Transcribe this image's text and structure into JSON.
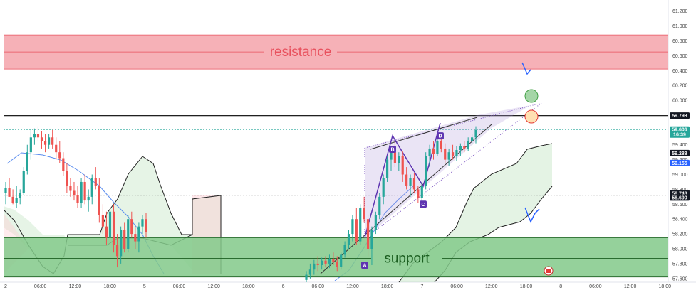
{
  "chart_data": {
    "type": "candlestick",
    "price_axis": {
      "range": [
        57.55,
        61.35
      ],
      "ticks": [
        "61.200",
        "61.000",
        "60.800",
        "60.600",
        "60.400",
        "60.200",
        "60.000",
        "59.800",
        "59.600",
        "59.400",
        "59.200",
        "59.000",
        "58.800",
        "58.600",
        "58.400",
        "58.200",
        "58.000",
        "57.800",
        "57.600"
      ]
    },
    "time_axis": {
      "ticks": [
        "2",
        "06:00",
        "12:00",
        "18:00",
        "5",
        "06:00",
        "12:00",
        "18:00",
        "6",
        "06:00",
        "12:00",
        "18:00",
        "7",
        "06:00",
        "12:00",
        "18:00",
        "8",
        "06:00",
        "12:00",
        "18:00"
      ]
    },
    "zones": [
      {
        "name": "resistance",
        "low": 60.42,
        "high": 60.88,
        "mid": 60.65,
        "color": "#f5a3aa",
        "text_color": "#e8515e"
      },
      {
        "name": "support",
        "low": 57.62,
        "high": 58.15,
        "mid": 57.87,
        "color": "#82c98a",
        "text_color": "#1b5e20"
      }
    ],
    "price_labels": [
      {
        "value": "59.793",
        "bg": "#131722"
      },
      {
        "value": "59.606",
        "sub": "16:39",
        "bg": "#26a69a"
      },
      {
        "value": "59.288",
        "bg": "#131722"
      },
      {
        "value": "59.155",
        "bg": "#2962ff"
      },
      {
        "value": "58.748",
        "bg": "#131722"
      },
      {
        "value": "58.690",
        "bg": "#131722"
      }
    ],
    "horizontal_lines": [
      {
        "price": 59.793,
        "style": "solid",
        "color": "#000000"
      },
      {
        "price": 59.606,
        "style": "dotted",
        "color": "#26a69a"
      },
      {
        "price": 58.72,
        "style": "dotted",
        "color": "#555555"
      }
    ],
    "pattern_points": [
      {
        "label": "A",
        "price": 57.78
      },
      {
        "label": "B",
        "price": 59.34
      },
      {
        "label": "C",
        "price": 58.6
      },
      {
        "label": "D",
        "price": 59.52
      }
    ],
    "candles": [
      {
        "o": 58.75,
        "h": 58.9,
        "l": 58.6,
        "c": 58.82
      },
      {
        "o": 58.82,
        "h": 58.95,
        "l": 58.7,
        "c": 58.7
      },
      {
        "o": 58.7,
        "h": 58.8,
        "l": 58.6,
        "c": 58.62
      },
      {
        "o": 58.62,
        "h": 58.85,
        "l": 58.55,
        "c": 58.68
      },
      {
        "o": 58.68,
        "h": 58.8,
        "l": 58.6,
        "c": 58.75
      },
      {
        "o": 58.75,
        "h": 59.1,
        "l": 58.72,
        "c": 59.05
      },
      {
        "o": 59.05,
        "h": 59.4,
        "l": 59.0,
        "c": 59.3
      },
      {
        "o": 59.3,
        "h": 59.6,
        "l": 59.2,
        "c": 59.5
      },
      {
        "o": 59.5,
        "h": 59.62,
        "l": 59.4,
        "c": 59.55
      },
      {
        "o": 59.55,
        "h": 59.65,
        "l": 59.45,
        "c": 59.5
      },
      {
        "o": 59.5,
        "h": 59.58,
        "l": 59.35,
        "c": 59.45
      },
      {
        "o": 59.45,
        "h": 59.55,
        "l": 59.3,
        "c": 59.4
      },
      {
        "o": 59.4,
        "h": 59.55,
        "l": 59.35,
        "c": 59.5
      },
      {
        "o": 59.5,
        "h": 59.6,
        "l": 59.35,
        "c": 59.4
      },
      {
        "o": 59.4,
        "h": 59.5,
        "l": 59.2,
        "c": 59.3
      },
      {
        "o": 59.3,
        "h": 59.45,
        "l": 59.15,
        "c": 59.22
      },
      {
        "o": 59.22,
        "h": 59.3,
        "l": 58.98,
        "c": 59.05
      },
      {
        "o": 59.05,
        "h": 59.15,
        "l": 58.75,
        "c": 58.85
      },
      {
        "o": 58.85,
        "h": 58.95,
        "l": 58.7,
        "c": 58.78
      },
      {
        "o": 58.78,
        "h": 58.9,
        "l": 58.65,
        "c": 58.72
      },
      {
        "o": 58.72,
        "h": 58.85,
        "l": 58.55,
        "c": 58.62
      },
      {
        "o": 58.62,
        "h": 58.95,
        "l": 58.55,
        "c": 58.9
      },
      {
        "o": 58.9,
        "h": 59.0,
        "l": 58.6,
        "c": 58.65
      },
      {
        "o": 58.65,
        "h": 58.8,
        "l": 58.5,
        "c": 58.7
      },
      {
        "o": 58.7,
        "h": 59.0,
        "l": 58.6,
        "c": 58.95
      },
      {
        "o": 58.95,
        "h": 59.1,
        "l": 58.8,
        "c": 58.85
      },
      {
        "o": 58.85,
        "h": 58.95,
        "l": 58.35,
        "c": 58.45
      },
      {
        "o": 58.45,
        "h": 58.6,
        "l": 58.2,
        "c": 58.3
      },
      {
        "o": 58.3,
        "h": 58.5,
        "l": 58.05,
        "c": 58.15
      },
      {
        "o": 58.15,
        "h": 58.55,
        "l": 57.9,
        "c": 58.5
      },
      {
        "o": 58.5,
        "h": 58.6,
        "l": 57.95,
        "c": 58.05
      },
      {
        "o": 58.05,
        "h": 58.2,
        "l": 57.75,
        "c": 57.9
      },
      {
        "o": 57.9,
        "h": 58.3,
        "l": 57.8,
        "c": 58.25
      },
      {
        "o": 58.25,
        "h": 58.35,
        "l": 57.95,
        "c": 58.0
      },
      {
        "o": 58.0,
        "h": 58.45,
        "l": 57.95,
        "c": 58.4
      },
      {
        "o": 58.4,
        "h": 58.5,
        "l": 58.15,
        "c": 58.2
      },
      {
        "o": 58.2,
        "h": 58.3,
        "l": 58.0,
        "c": 58.1
      },
      {
        "o": 58.1,
        "h": 58.35,
        "l": 57.95,
        "c": 58.3
      },
      {
        "o": 58.3,
        "h": 58.45,
        "l": 58.2,
        "c": 58.4
      },
      {
        "o": 58.4,
        "h": 58.48,
        "l": 58.15,
        "c": 58.22
      },
      {
        "o": 57.58,
        "h": 57.7,
        "l": 57.55,
        "c": 57.65
      },
      {
        "o": 57.65,
        "h": 57.8,
        "l": 57.6,
        "c": 57.72
      },
      {
        "o": 57.72,
        "h": 57.85,
        "l": 57.65,
        "c": 57.8
      },
      {
        "o": 57.8,
        "h": 57.9,
        "l": 57.7,
        "c": 57.78
      },
      {
        "o": 57.78,
        "h": 57.88,
        "l": 57.72,
        "c": 57.84
      },
      {
        "o": 57.84,
        "h": 57.9,
        "l": 57.75,
        "c": 57.8
      },
      {
        "o": 57.8,
        "h": 57.92,
        "l": 57.74,
        "c": 57.86
      },
      {
        "o": 57.86,
        "h": 57.95,
        "l": 57.78,
        "c": 57.82
      },
      {
        "o": 57.82,
        "h": 57.9,
        "l": 57.7,
        "c": 57.76
      },
      {
        "o": 57.76,
        "h": 57.95,
        "l": 57.72,
        "c": 57.92
      },
      {
        "o": 57.92,
        "h": 58.1,
        "l": 57.88,
        "c": 58.05
      },
      {
        "o": 58.05,
        "h": 58.25,
        "l": 58.0,
        "c": 58.2
      },
      {
        "o": 58.2,
        "h": 58.45,
        "l": 58.1,
        "c": 58.4
      },
      {
        "o": 58.4,
        "h": 58.55,
        "l": 58.05,
        "c": 58.1
      },
      {
        "o": 58.1,
        "h": 58.6,
        "l": 58.05,
        "c": 58.55
      },
      {
        "o": 58.55,
        "h": 58.7,
        "l": 58.35,
        "c": 58.4
      },
      {
        "o": 58.4,
        "h": 58.45,
        "l": 57.9,
        "c": 58.0
      },
      {
        "o": 58.0,
        "h": 58.3,
        "l": 57.78,
        "c": 58.25
      },
      {
        "o": 58.25,
        "h": 58.5,
        "l": 58.2,
        "c": 58.45
      },
      {
        "o": 58.45,
        "h": 58.75,
        "l": 58.4,
        "c": 58.7
      },
      {
        "o": 58.7,
        "h": 59.0,
        "l": 58.6,
        "c": 58.95
      },
      {
        "o": 58.95,
        "h": 59.25,
        "l": 58.9,
        "c": 59.2
      },
      {
        "o": 59.2,
        "h": 59.35,
        "l": 59.05,
        "c": 59.3
      },
      {
        "o": 59.3,
        "h": 59.45,
        "l": 59.1,
        "c": 59.15
      },
      {
        "o": 59.15,
        "h": 59.3,
        "l": 59.05,
        "c": 59.25
      },
      {
        "o": 59.25,
        "h": 59.32,
        "l": 58.9,
        "c": 59.0
      },
      {
        "o": 59.0,
        "h": 59.1,
        "l": 58.8,
        "c": 58.85
      },
      {
        "o": 58.85,
        "h": 59.0,
        "l": 58.7,
        "c": 58.95
      },
      {
        "o": 58.95,
        "h": 59.02,
        "l": 58.75,
        "c": 58.8
      },
      {
        "o": 58.8,
        "h": 58.85,
        "l": 58.62,
        "c": 58.68
      },
      {
        "o": 58.68,
        "h": 58.9,
        "l": 58.6,
        "c": 58.85
      },
      {
        "o": 58.85,
        "h": 59.3,
        "l": 58.8,
        "c": 59.25
      },
      {
        "o": 59.25,
        "h": 59.4,
        "l": 59.1,
        "c": 59.35
      },
      {
        "o": 59.35,
        "h": 59.45,
        "l": 59.2,
        "c": 59.28
      },
      {
        "o": 59.28,
        "h": 59.5,
        "l": 59.25,
        "c": 59.45
      },
      {
        "o": 59.45,
        "h": 59.55,
        "l": 59.3,
        "c": 59.35
      },
      {
        "o": 59.35,
        "h": 59.42,
        "l": 59.15,
        "c": 59.2
      },
      {
        "o": 59.2,
        "h": 59.35,
        "l": 59.12,
        "c": 59.3
      },
      {
        "o": 59.3,
        "h": 59.4,
        "l": 59.2,
        "c": 59.25
      },
      {
        "o": 59.25,
        "h": 59.38,
        "l": 59.18,
        "c": 59.33
      },
      {
        "o": 59.33,
        "h": 59.42,
        "l": 59.25,
        "c": 59.38
      },
      {
        "o": 59.38,
        "h": 59.45,
        "l": 59.3,
        "c": 59.35
      },
      {
        "o": 59.35,
        "h": 59.5,
        "l": 59.32,
        "c": 59.45
      },
      {
        "o": 59.45,
        "h": 59.55,
        "l": 59.4,
        "c": 59.5
      },
      {
        "o": 59.5,
        "h": 59.65,
        "l": 59.42,
        "c": 59.6
      }
    ]
  }
}
